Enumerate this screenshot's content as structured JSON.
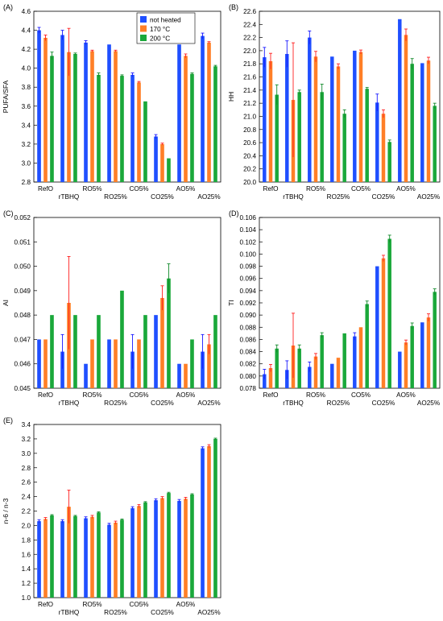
{
  "colors": {
    "not_heated": "#1f4fff",
    "c170": "#ff7f27",
    "c200": "#1aa83a",
    "err_blue": "#1a1aff",
    "err_red": "#ff2020",
    "err_green": "#138a2c"
  },
  "categories": [
    "RefO",
    "rTBHQ",
    "RO5%",
    "RO25%",
    "CO5%",
    "CO25%",
    "AO5%",
    "AO25%"
  ],
  "legend": [
    "not heated",
    "170 °C",
    "200 °C"
  ],
  "chart_data": [
    {
      "type": "bar",
      "panel": "(A)",
      "ylabel": "PUFA/SFA",
      "ylim": [
        2.8,
        4.6
      ],
      "yticks": [
        "2.8",
        "3.0",
        "3.2",
        "3.4",
        "3.6",
        "3.8",
        "4.0",
        "4.2",
        "4.4",
        "4.6"
      ],
      "categories": [
        "RefO",
        "rTBHQ",
        "RO5%",
        "RO25%",
        "CO5%",
        "CO25%",
        "AO5%",
        "AO25%"
      ],
      "series": [
        {
          "name": "not heated",
          "values": [
            4.4,
            4.35,
            4.27,
            4.25,
            3.93,
            3.28,
            4.25,
            4.34
          ],
          "errors": [
            0.03,
            0.05,
            0.02,
            0.0,
            0.02,
            0.02,
            0.0,
            0.03
          ]
        },
        {
          "name": "170 °C",
          "values": [
            4.32,
            4.17,
            4.18,
            4.18,
            3.85,
            3.2,
            4.13,
            4.27
          ],
          "errors": [
            0.03,
            0.25,
            0.01,
            0.01,
            0.01,
            0.01,
            0.02,
            0.01
          ]
        },
        {
          "name": "200 °C",
          "values": [
            4.13,
            4.15,
            3.93,
            3.92,
            3.65,
            3.05,
            3.94,
            4.02
          ],
          "errors": [
            0.04,
            0.01,
            0.02,
            0.01,
            0.0,
            0.0,
            0.01,
            0.01
          ]
        }
      ],
      "legend_position": "top-right"
    },
    {
      "type": "bar",
      "panel": "(B)",
      "ylabel": "HH",
      "ylim": [
        20.0,
        22.6
      ],
      "yticks": [
        "20.0",
        "20.2",
        "20.4",
        "20.6",
        "20.8",
        "21.0",
        "21.2",
        "21.4",
        "21.6",
        "21.8",
        "22.0",
        "22.2",
        "22.4",
        "22.6"
      ],
      "categories": [
        "RefO",
        "rTBHQ",
        "RO5%",
        "RO25%",
        "CO5%",
        "CO25%",
        "AO5%",
        "AO25%"
      ],
      "series": [
        {
          "name": "not heated",
          "values": [
            21.9,
            21.95,
            22.2,
            21.91,
            22.0,
            21.21,
            22.48,
            21.81
          ],
          "errors": [
            0.15,
            0.2,
            0.1,
            0.0,
            0.0,
            0.13,
            0.0,
            0.0
          ]
        },
        {
          "name": "170 °C",
          "values": [
            21.84,
            21.25,
            21.91,
            21.76,
            21.98,
            21.04,
            22.24,
            21.85
          ],
          "errors": [
            0.12,
            0.87,
            0.08,
            0.04,
            0.03,
            0.06,
            0.09,
            0.05
          ]
        },
        {
          "name": "200 °C",
          "values": [
            21.33,
            21.37,
            21.37,
            21.04,
            21.42,
            20.61,
            21.8,
            21.16
          ],
          "errors": [
            0.15,
            0.03,
            0.12,
            0.06,
            0.02,
            0.03,
            0.08,
            0.04
          ]
        }
      ]
    },
    {
      "type": "bar",
      "panel": "(C)",
      "ylabel": "AI",
      "ylim": [
        0.045,
        0.052
      ],
      "yticks": [
        "0.045",
        "0.046",
        "0.047",
        "0.048",
        "0.049",
        "0.050",
        "0.051",
        "0.052"
      ],
      "categories": [
        "RefO",
        "rTBHQ",
        "RO5%",
        "RO25%",
        "CO5%",
        "CO25%",
        "AO5%",
        "AO25%"
      ],
      "series": [
        {
          "name": "not heated",
          "values": [
            0.047,
            0.0465,
            0.046,
            0.047,
            0.0465,
            0.048,
            0.046,
            0.0465
          ],
          "errors": [
            0.0,
            0.0007,
            0.0,
            0.0,
            0.0007,
            0.0,
            0.0,
            0.0007
          ]
        },
        {
          "name": "170 °C",
          "values": [
            0.047,
            0.0485,
            0.047,
            0.047,
            0.047,
            0.0487,
            0.046,
            0.0468
          ],
          "errors": [
            0.0,
            0.0019,
            0.0,
            0.0,
            0.0,
            0.0005,
            0.0,
            0.0004
          ]
        },
        {
          "name": "200 °C",
          "values": [
            0.048,
            0.048,
            0.048,
            0.049,
            0.048,
            0.0495,
            0.047,
            0.048
          ],
          "errors": [
            0.0,
            0.0,
            0.0,
            0.0,
            0.0,
            0.0006,
            0.0,
            0.0
          ]
        }
      ]
    },
    {
      "type": "bar",
      "panel": "(D)",
      "ylabel": "TI",
      "ylim": [
        0.078,
        0.106
      ],
      "yticks": [
        "0.078",
        "0.080",
        "0.082",
        "0.084",
        "0.086",
        "0.088",
        "0.090",
        "0.092",
        "0.094",
        "0.096",
        "0.098",
        "0.100",
        "0.102",
        "0.104",
        "0.106"
      ],
      "categories": [
        "RefO",
        "rTBHQ",
        "RO5%",
        "RO25%",
        "CO5%",
        "CO25%",
        "AO5%",
        "AO25%"
      ],
      "series": [
        {
          "name": "not heated",
          "values": [
            0.0803,
            0.081,
            0.0815,
            0.082,
            0.0865,
            0.098,
            0.084,
            0.0888
          ],
          "errors": [
            0.0008,
            0.0015,
            0.0008,
            0.0,
            0.0006,
            0.0,
            0.0,
            0.0
          ]
        },
        {
          "name": "170 °C",
          "values": [
            0.0813,
            0.085,
            0.0832,
            0.083,
            0.088,
            0.0993,
            0.0855,
            0.0896
          ],
          "errors": [
            0.0006,
            0.0053,
            0.0005,
            0.0,
            0.0,
            0.0005,
            0.0004,
            0.0006
          ]
        },
        {
          "name": "200 °C",
          "values": [
            0.0845,
            0.0845,
            0.0867,
            0.087,
            0.0918,
            0.1025,
            0.0882,
            0.0938
          ],
          "errors": [
            0.0006,
            0.0006,
            0.0004,
            0.0,
            0.0005,
            0.0006,
            0.0005,
            0.0005
          ]
        }
      ]
    },
    {
      "type": "bar",
      "panel": "(E)",
      "ylabel": "n-6 / n-3",
      "ylim": [
        1.0,
        3.4
      ],
      "yticks": [
        "1.0",
        "1.2",
        "1.4",
        "1.6",
        "1.8",
        "2.0",
        "2.2",
        "2.4",
        "2.6",
        "2.8",
        "3.0",
        "3.2",
        "3.4"
      ],
      "categories": [
        "RefO",
        "rTBHQ",
        "RO5%",
        "RO25%",
        "CO5%",
        "CO25%",
        "AO5%",
        "AO25%"
      ],
      "series": [
        {
          "name": "not heated",
          "values": [
            2.06,
            2.06,
            2.1,
            2.01,
            2.24,
            2.35,
            2.34,
            3.07
          ],
          "errors": [
            0.02,
            0.02,
            0.02,
            0.02,
            0.02,
            0.02,
            0.02,
            0.02
          ]
        },
        {
          "name": "170 °C",
          "values": [
            2.09,
            2.26,
            2.12,
            2.04,
            2.27,
            2.38,
            2.37,
            3.1
          ],
          "errors": [
            0.02,
            0.23,
            0.02,
            0.02,
            0.02,
            0.02,
            0.02,
            0.02
          ]
        },
        {
          "name": "200 °C",
          "values": [
            2.14,
            2.13,
            2.18,
            2.08,
            2.32,
            2.45,
            2.43,
            3.2
          ],
          "errors": [
            0.01,
            0.01,
            0.01,
            0.01,
            0.01,
            0.01,
            0.01,
            0.01
          ]
        }
      ]
    }
  ]
}
